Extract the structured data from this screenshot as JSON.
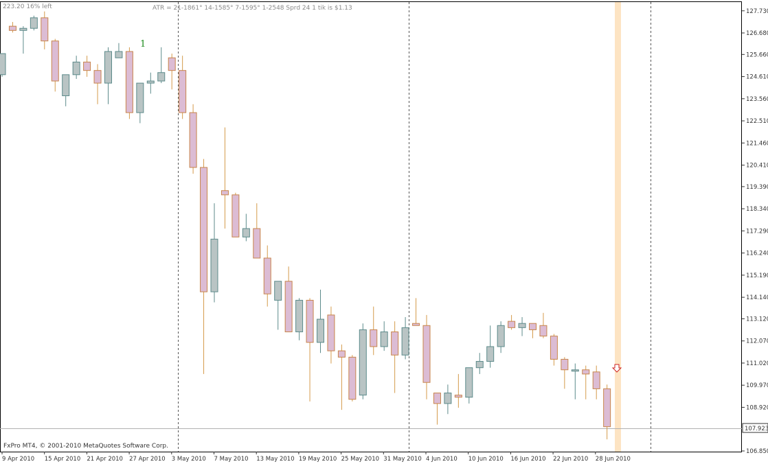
{
  "header": {
    "info_left": "223.20  16% left",
    "atr_line": "ATR = 21-1861° 14-1585° 7-1595° 1-2548   Sprd 24 1 tik is $1.13"
  },
  "footer": {
    "copyright": "FxPro MT4, © 2001-2010 MetaQuotes Software Corp."
  },
  "annotation": {
    "label": "1"
  },
  "colors": {
    "bull_fill": "#b9c4c4",
    "bull_stroke": "#5c8a8a",
    "bear_fill": "#dcbcd4",
    "bear_stroke": "#c8844a",
    "wick_bull": "#5c8a8a",
    "wick_bear": "#d49a4a",
    "highlight": "#fde4c3",
    "arrow": "#cc2222",
    "current_price_line": "#b0b0b0"
  },
  "chart_data": {
    "type": "candlestick",
    "symbol": "",
    "y_axis_ticks": [
      "127.730",
      "126.680",
      "125.660",
      "124.610",
      "123.560",
      "122.510",
      "121.460",
      "120.410",
      "119.390",
      "118.340",
      "117.290",
      "116.240",
      "115.190",
      "114.140",
      "113.120",
      "112.070",
      "111.020",
      "109.970",
      "108.920",
      "106.850"
    ],
    "current_price": "107.923",
    "x_axis_labels": [
      "9 Apr 2010",
      "15 Apr 2010",
      "21 Apr 2010",
      "27 Apr 2010",
      "3 May 2010",
      "7 May 2010",
      "13 May 2010",
      "19 May 2010",
      "25 May 2010",
      "31 May 2010",
      "4 Jun 2010",
      "10 Jun 2010",
      "16 Jun 2010",
      "22 Jun 2010",
      "28 Jun 2010"
    ],
    "ohlc": [
      {
        "o": 124.7,
        "h": 125.7,
        "l": 124.6,
        "c": 125.7
      },
      {
        "o": 127.0,
        "h": 127.2,
        "l": 126.7,
        "c": 126.8
      },
      {
        "o": 126.8,
        "h": 127.0,
        "l": 125.7,
        "c": 126.9
      },
      {
        "o": 126.9,
        "h": 127.5,
        "l": 126.8,
        "c": 127.4
      },
      {
        "o": 127.4,
        "h": 127.7,
        "l": 125.9,
        "c": 126.3
      },
      {
        "o": 126.3,
        "h": 126.4,
        "l": 123.9,
        "c": 124.4
      },
      {
        "o": 123.7,
        "h": 124.7,
        "l": 123.2,
        "c": 124.7
      },
      {
        "o": 124.7,
        "h": 125.6,
        "l": 124.5,
        "c": 125.3
      },
      {
        "o": 125.3,
        "h": 125.6,
        "l": 124.6,
        "c": 124.9
      },
      {
        "o": 124.9,
        "h": 125.2,
        "l": 123.3,
        "c": 124.3
      },
      {
        "o": 124.3,
        "h": 126.0,
        "l": 123.3,
        "c": 125.8
      },
      {
        "o": 125.5,
        "h": 126.2,
        "l": 125.5,
        "c": 125.8
      },
      {
        "o": 125.8,
        "h": 126.0,
        "l": 122.6,
        "c": 122.9
      },
      {
        "o": 122.9,
        "h": 124.3,
        "l": 122.4,
        "c": 124.3
      },
      {
        "o": 124.3,
        "h": 124.8,
        "l": 123.8,
        "c": 124.4
      },
      {
        "o": 124.4,
        "h": 126.0,
        "l": 124.3,
        "c": 124.8
      },
      {
        "o": 125.5,
        "h": 125.7,
        "l": 124.0,
        "c": 124.9
      },
      {
        "o": 124.9,
        "h": 125.6,
        "l": 122.6,
        "c": 122.9
      },
      {
        "o": 122.9,
        "h": 123.3,
        "l": 120.0,
        "c": 120.3
      },
      {
        "o": 120.3,
        "h": 120.7,
        "l": 110.5,
        "c": 114.4
      },
      {
        "o": 114.4,
        "h": 118.6,
        "l": 113.9,
        "c": 116.9
      },
      {
        "o": 119.2,
        "h": 122.2,
        "l": 117.4,
        "c": 119.0
      },
      {
        "o": 119.0,
        "h": 119.1,
        "l": 117.0,
        "c": 117.0
      },
      {
        "o": 117.0,
        "h": 118.1,
        "l": 116.8,
        "c": 117.4
      },
      {
        "o": 117.4,
        "h": 118.6,
        "l": 116.0,
        "c": 116.0
      },
      {
        "o": 116.0,
        "h": 116.6,
        "l": 113.7,
        "c": 114.3
      },
      {
        "o": 114.0,
        "h": 114.8,
        "l": 112.6,
        "c": 114.9
      },
      {
        "o": 114.9,
        "h": 115.6,
        "l": 112.5,
        "c": 112.5
      },
      {
        "o": 112.5,
        "h": 114.1,
        "l": 112.1,
        "c": 114.0
      },
      {
        "o": 114.0,
        "h": 114.1,
        "l": 109.2,
        "c": 112.0
      },
      {
        "o": 112.0,
        "h": 114.5,
        "l": 111.5,
        "c": 113.1
      },
      {
        "o": 113.3,
        "h": 113.7,
        "l": 111.0,
        "c": 111.6
      },
      {
        "o": 111.6,
        "h": 111.9,
        "l": 108.8,
        "c": 111.3
      },
      {
        "o": 111.3,
        "h": 111.4,
        "l": 109.2,
        "c": 109.3
      },
      {
        "o": 109.5,
        "h": 112.9,
        "l": 109.3,
        "c": 112.6
      },
      {
        "o": 112.6,
        "h": 113.7,
        "l": 111.4,
        "c": 111.8
      },
      {
        "o": 111.8,
        "h": 113.0,
        "l": 111.6,
        "c": 112.5
      },
      {
        "o": 112.5,
        "h": 113.0,
        "l": 109.6,
        "c": 111.4
      },
      {
        "o": 111.4,
        "h": 113.2,
        "l": 111.2,
        "c": 112.7
      },
      {
        "o": 112.9,
        "h": 114.1,
        "l": 112.8,
        "c": 112.8
      },
      {
        "o": 112.8,
        "h": 113.3,
        "l": 109.3,
        "c": 110.1
      },
      {
        "o": 109.6,
        "h": 109.6,
        "l": 108.1,
        "c": 109.1
      },
      {
        "o": 109.1,
        "h": 110.0,
        "l": 108.6,
        "c": 109.6
      },
      {
        "o": 109.5,
        "h": 110.5,
        "l": 108.9,
        "c": 109.4
      },
      {
        "o": 109.4,
        "h": 110.8,
        "l": 109.1,
        "c": 110.8
      },
      {
        "o": 110.8,
        "h": 111.5,
        "l": 110.5,
        "c": 111.1
      },
      {
        "o": 111.1,
        "h": 112.8,
        "l": 110.8,
        "c": 111.8
      },
      {
        "o": 111.8,
        "h": 113.0,
        "l": 111.5,
        "c": 112.8
      },
      {
        "o": 113.0,
        "h": 113.3,
        "l": 112.6,
        "c": 112.7
      },
      {
        "o": 112.7,
        "h": 113.2,
        "l": 112.3,
        "c": 112.9
      },
      {
        "o": 112.9,
        "h": 112.9,
        "l": 112.2,
        "c": 112.6
      },
      {
        "o": 112.8,
        "h": 113.4,
        "l": 112.2,
        "c": 112.3
      },
      {
        "o": 112.3,
        "h": 112.4,
        "l": 110.9,
        "c": 111.2
      },
      {
        "o": 111.2,
        "h": 111.3,
        "l": 109.8,
        "c": 110.7
      },
      {
        "o": 110.7,
        "h": 111.0,
        "l": 109.3,
        "c": 110.7
      },
      {
        "o": 110.7,
        "h": 110.9,
        "l": 109.3,
        "c": 110.5
      },
      {
        "o": 110.6,
        "h": 110.9,
        "l": 109.3,
        "c": 109.8
      },
      {
        "o": 109.8,
        "h": 110.0,
        "l": 107.4,
        "c": 108.0
      }
    ]
  }
}
